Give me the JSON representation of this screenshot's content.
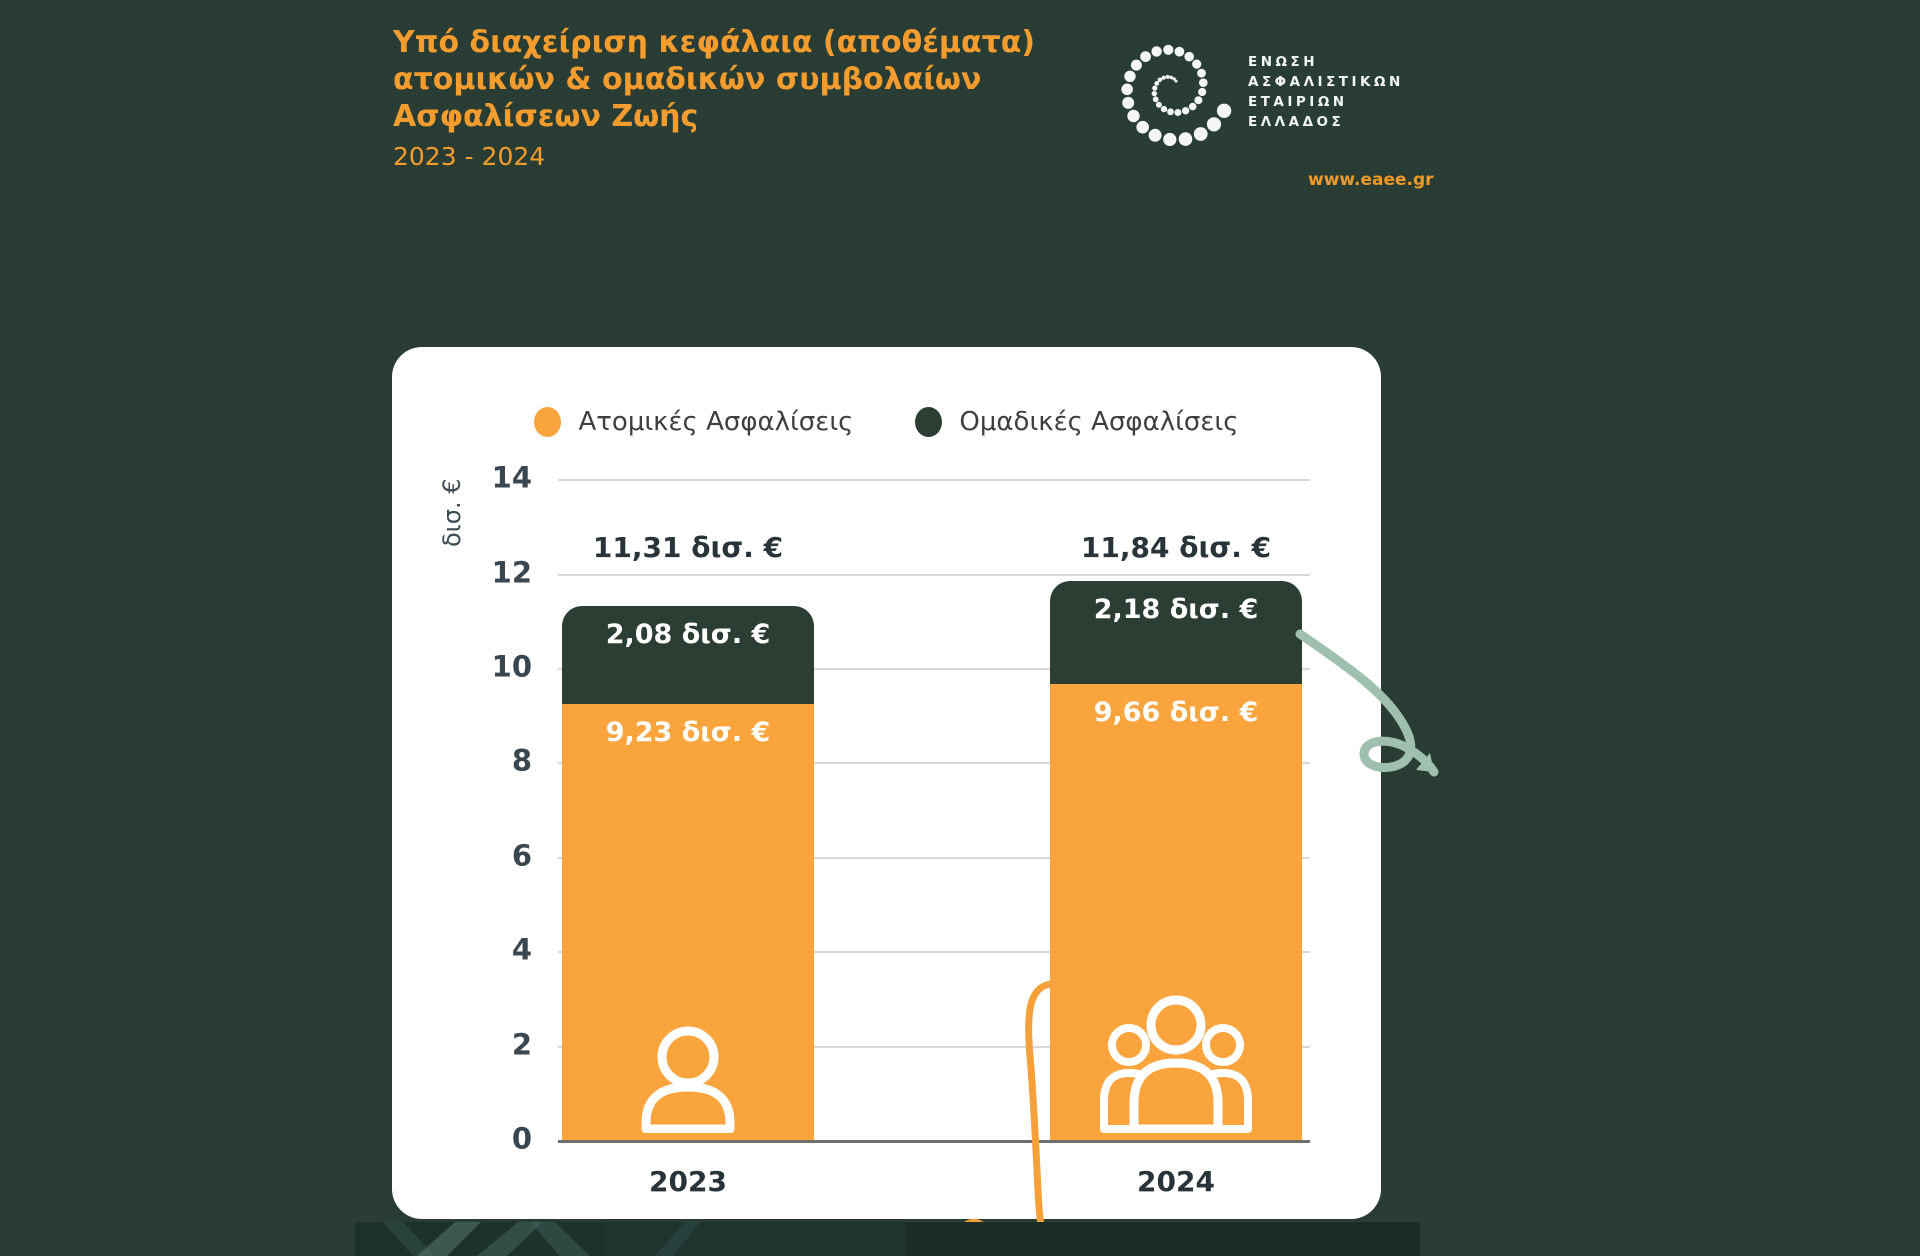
{
  "header": {
    "title_lines": [
      "Υπό διαχείριση κεφάλαια (αποθέματα)",
      "ατομικών & ομαδικών συμβολαίων",
      "Ασφαλίσεων Ζωής"
    ],
    "subtitle": "2023 - 2024",
    "logo_lines": [
      "ΕΝΩΣΗ",
      "ΑΣΦΑΛΙΣΤΙΚΩΝ",
      "ΕΤΑΙΡΙΩΝ",
      "ΕΛΛΑΔΟΣ"
    ],
    "website": "www.eaee.gr"
  },
  "colors": {
    "background": "#293D34",
    "accent_orange": "#F59C2F",
    "bar_orange": "#F9A43C",
    "bar_dark_green": "#2C3E33",
    "card_white": "#FFFFFF",
    "teal_arrow": "#9FC0AE"
  },
  "icons": {
    "bar_2023": "single-person-icon",
    "bar_2024": "group-people-icon",
    "logo": "dotted-spiral-logo"
  },
  "chart_data": {
    "type": "bar",
    "stacked": true,
    "categories": [
      "2023",
      "2024"
    ],
    "series": [
      {
        "name": "Ατομικές Ασφαλίσεις",
        "color": "#F9A43C",
        "values": [
          9.23,
          9.66
        ],
        "value_labels": [
          "9,23 δισ. €",
          "9,66 δισ. €"
        ]
      },
      {
        "name": "Ομαδικές Ασφαλίσεις",
        "color": "#2C3E33",
        "values": [
          2.08,
          2.18
        ],
        "value_labels": [
          "2,08 δισ. €",
          "2,18 δισ. €"
        ]
      }
    ],
    "totals": [
      11.31,
      11.84
    ],
    "total_labels": [
      "11,31 δισ. €",
      "11,84 δισ. €"
    ],
    "ylabel": "δισ. €",
    "ylim": [
      0,
      14
    ],
    "yticks": [
      0,
      2,
      4,
      6,
      8,
      10,
      12,
      14
    ],
    "grid": true,
    "legend_position": "top"
  }
}
